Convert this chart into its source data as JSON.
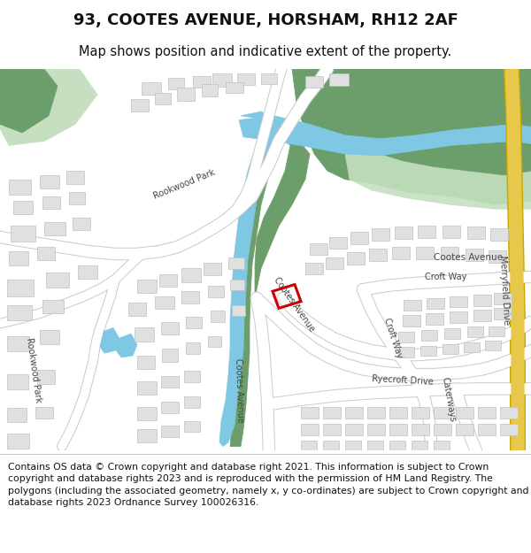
{
  "title": "93, COOTES AVENUE, HORSHAM, RH12 2AF",
  "subtitle": "Map shows position and indicative extent of the property.",
  "footer": "Contains OS data © Crown copyright and database right 2021. This information is subject to Crown copyright and database rights 2023 and is reproduced with the permission of HM Land Registry. The polygons (including the associated geometry, namely x, y co-ordinates) are subject to Crown copyright and database rights 2023 Ordnance Survey 100026316.",
  "bg_color": "#ffffff",
  "map_bg": "#ffffff",
  "green_dark": "#6b9e6b",
  "green_light": "#c5dfc0",
  "blue_water": "#7ec8e3",
  "building_color": "#e0e0e0",
  "building_edge": "#c0c0c0",
  "road_fill": "#ffffff",
  "road_edge": "#cccccc",
  "red_plot": "#cc0000",
  "yellow_road": "#e8c84a",
  "title_fontsize": 13,
  "subtitle_fontsize": 10.5,
  "footer_fontsize": 7.8,
  "text_color": "#444444"
}
